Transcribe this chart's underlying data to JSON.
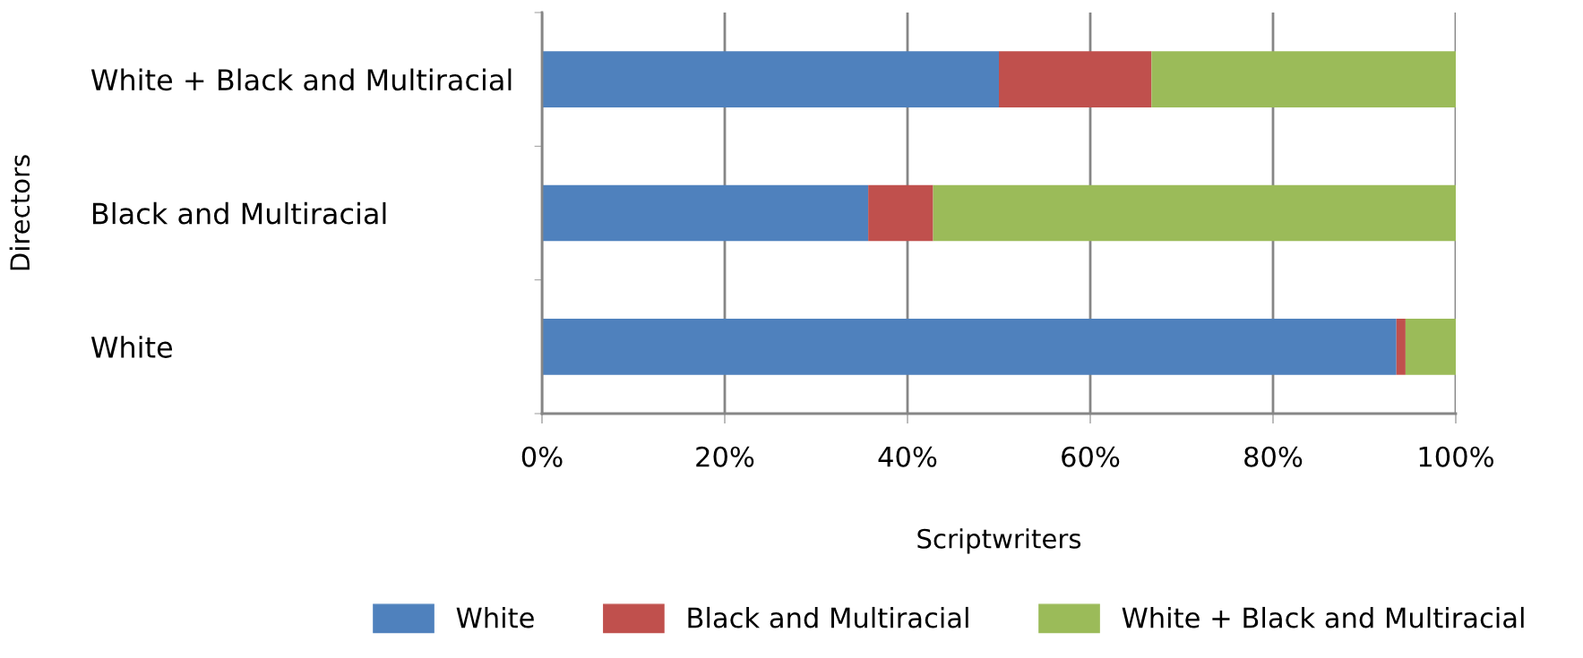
{
  "chart_data": {
    "type": "bar",
    "orientation": "horizontal",
    "stacked": true,
    "xlabel": "Scriptwriters",
    "ylabel": "Directors",
    "categories": [
      "White + Black and Multiracial",
      "Black and Multiracial",
      "White"
    ],
    "series": [
      {
        "name": "White",
        "color": "#4f81bd",
        "values": [
          50,
          35.7,
          93.5
        ]
      },
      {
        "name": "Black and Multiracial",
        "color": "#c0504d",
        "values": [
          16.7,
          7.1,
          1.0
        ]
      },
      {
        "name": "White + Black and Multiracial",
        "color": "#9bbb59",
        "values": [
          33.3,
          57.2,
          5.5
        ]
      }
    ],
    "xlim": [
      0,
      100
    ],
    "xticks": [
      {
        "value": 0,
        "label": "0%"
      },
      {
        "value": 20,
        "label": "20%"
      },
      {
        "value": 40,
        "label": "40%"
      },
      {
        "value": 60,
        "label": "60%"
      },
      {
        "value": 80,
        "label": "80%"
      },
      {
        "value": 100,
        "label": "100%"
      }
    ],
    "grid": "x",
    "legend": "bottom"
  }
}
